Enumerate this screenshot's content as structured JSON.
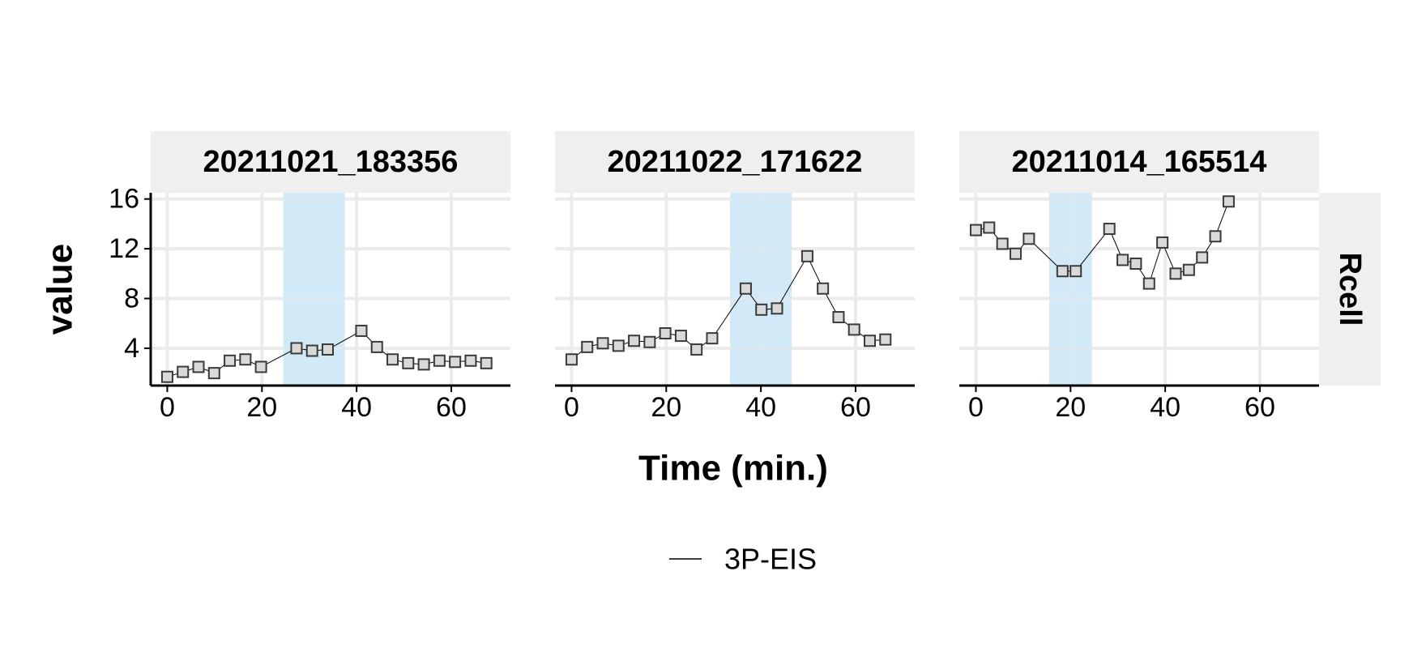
{
  "chart_data": {
    "type": "line",
    "xlabel": "Time (min.)",
    "ylabel": "value",
    "row_strip": "Rcell",
    "xlim": [
      -3.5,
      72.5
    ],
    "ylim": [
      1,
      16.5
    ],
    "xticks": [
      0,
      20,
      40,
      60
    ],
    "yticks": [
      4,
      8,
      12,
      16
    ],
    "grid": true,
    "legend": {
      "position": "bottom",
      "entries": [
        {
          "label": "3P-EIS",
          "color": "#000000"
        }
      ]
    },
    "shade_color": "#cfe8f7",
    "panels": [
      {
        "strip": "20211021_183356",
        "shaded": [
          24.5,
          37.5
        ],
        "series": [
          {
            "name": "3P-EIS",
            "x": [
              0,
              3.3,
              6.6,
              9.9,
              13.2,
              16.5,
              19.8,
              27.3,
              30.6,
              33.9,
              41,
              44.3,
              47.6,
              50.9,
              54.2,
              57.5,
              60.8,
              64.1,
              67.4
            ],
            "y": [
              1.7,
              2.1,
              2.5,
              2.0,
              3.0,
              3.1,
              2.5,
              4.0,
              3.8,
              3.9,
              5.4,
              4.1,
              3.1,
              2.8,
              2.7,
              3.0,
              2.9,
              3.0,
              2.8
            ]
          }
        ]
      },
      {
        "strip": "20211022_171622",
        "shaded": [
          33.5,
          46.5
        ],
        "series": [
          {
            "name": "3P-EIS",
            "x": [
              0,
              3.3,
              6.6,
              9.9,
              13.2,
              16.5,
              19.8,
              23.1,
              26.4,
              29.7,
              36.8,
              40.1,
              43.4,
              49.8,
              53.1,
              56.4,
              59.7,
              63,
              66.3
            ],
            "y": [
              3.1,
              4.1,
              4.4,
              4.2,
              4.6,
              4.5,
              5.2,
              5.0,
              3.9,
              4.8,
              8.8,
              7.1,
              7.2,
              11.4,
              8.8,
              6.5,
              5.5,
              4.6,
              4.7
            ]
          }
        ]
      },
      {
        "strip": "20211014_165514",
        "shaded": [
          15.5,
          24.5
        ],
        "series": [
          {
            "name": "3P-EIS",
            "x": [
              0,
              2.8,
              5.6,
              8.4,
              11.2,
              18.3,
              21.1,
              28.2,
              31,
              33.8,
              36.6,
              39.4,
              42.2,
              45,
              47.8,
              50.6,
              53.4
            ],
            "y": [
              13.5,
              13.7,
              12.4,
              11.6,
              12.8,
              10.2,
              10.2,
              13.6,
              11.1,
              10.8,
              9.2,
              12.5,
              10.0,
              10.3,
              11.3,
              13.0,
              15.8
            ]
          }
        ]
      }
    ]
  }
}
